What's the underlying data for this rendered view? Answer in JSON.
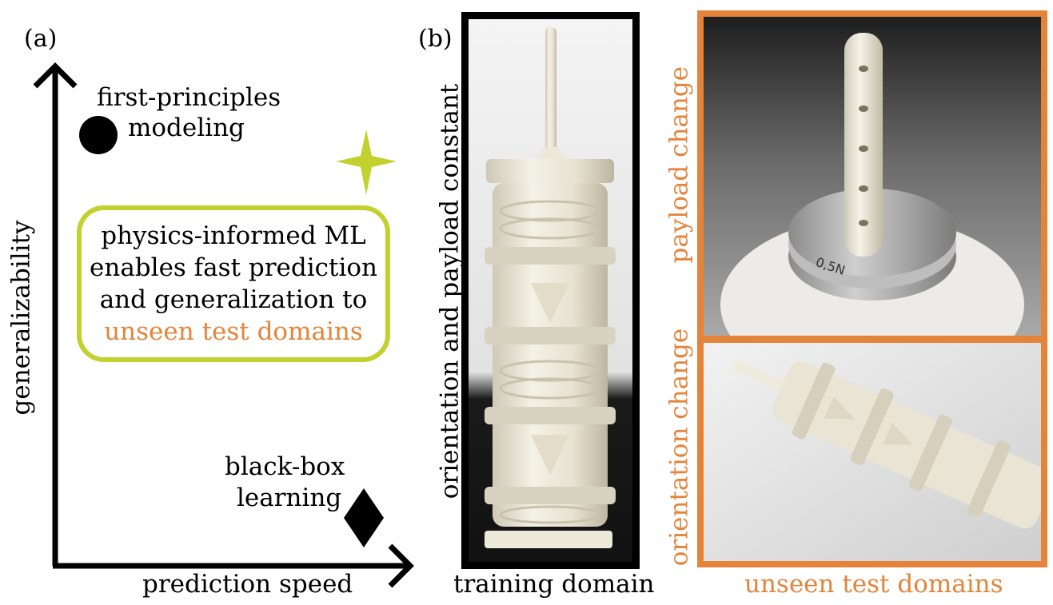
{
  "panel_a": {
    "label": "(a)",
    "y_axis_label": "generalizability",
    "x_axis_label": "prediction speed",
    "first_principles": [
      "first-principles",
      "modeling"
    ],
    "black_box": [
      "black-box",
      "learning"
    ],
    "callout_lines": [
      "physics-informed ML",
      "enables fast prediction",
      "and generalization to",
      "unseen test domains"
    ]
  },
  "panel_b": {
    "label": "(b)",
    "training_side_label": "orientation and payload constant",
    "training_caption": "training domain",
    "payload_side_label": "payload change",
    "orientation_side_label": "orientation change",
    "test_caption": "unseen test domains",
    "weight_marking": "0,5N"
  },
  "colors": {
    "accent_green": "#c2d12e",
    "accent_orange": "#e4843a",
    "axis": "#000000"
  }
}
